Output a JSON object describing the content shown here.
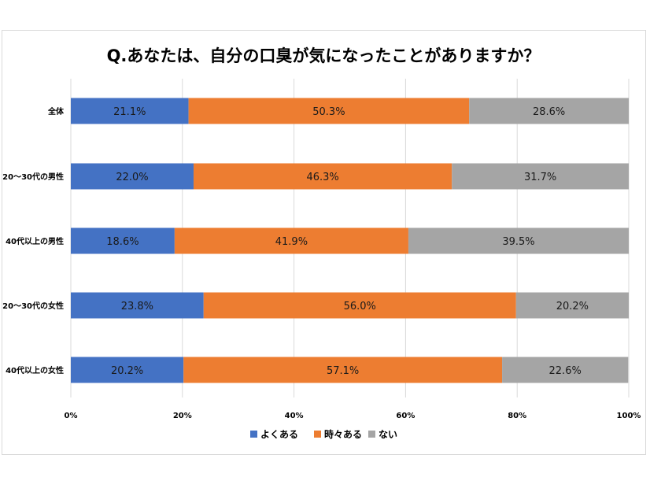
{
  "chart_data": {
    "type": "bar",
    "orientation": "horizontal",
    "stacked": true,
    "title": "Q.あなたは、自分の口臭が気になったことがありますか？",
    "categories": [
      "全体",
      "20〜30代の男性",
      "40代以上の男性",
      "20〜30代の女性",
      "40代以上の女性"
    ],
    "series": [
      {
        "name": "よくある",
        "color": "#4472c4",
        "values": [
          21.1,
          22.0,
          18.6,
          23.8,
          20.2
        ],
        "labels": [
          "21.1%",
          "22.0%",
          "18.6%",
          "23.8%",
          "20.2%"
        ]
      },
      {
        "name": "時々ある",
        "color": "#ed7d31",
        "values": [
          50.3,
          46.3,
          41.9,
          56.0,
          57.1
        ],
        "labels": [
          "50.3%",
          "46.3%",
          "41.9%",
          "56.0%",
          "57.1%"
        ]
      },
      {
        "name": "ない",
        "color": "#a5a5a5",
        "values": [
          28.6,
          31.7,
          39.5,
          20.2,
          22.6
        ],
        "labels": [
          "28.6%",
          "31.7%",
          "39.5%",
          "20.2%",
          "22.6%"
        ]
      }
    ],
    "xlim": [
      0,
      100
    ],
    "x_ticks": [
      "0%",
      "20%",
      "40%",
      "60%",
      "80%",
      "100%"
    ],
    "grid": true,
    "legend_position": "bottom"
  }
}
